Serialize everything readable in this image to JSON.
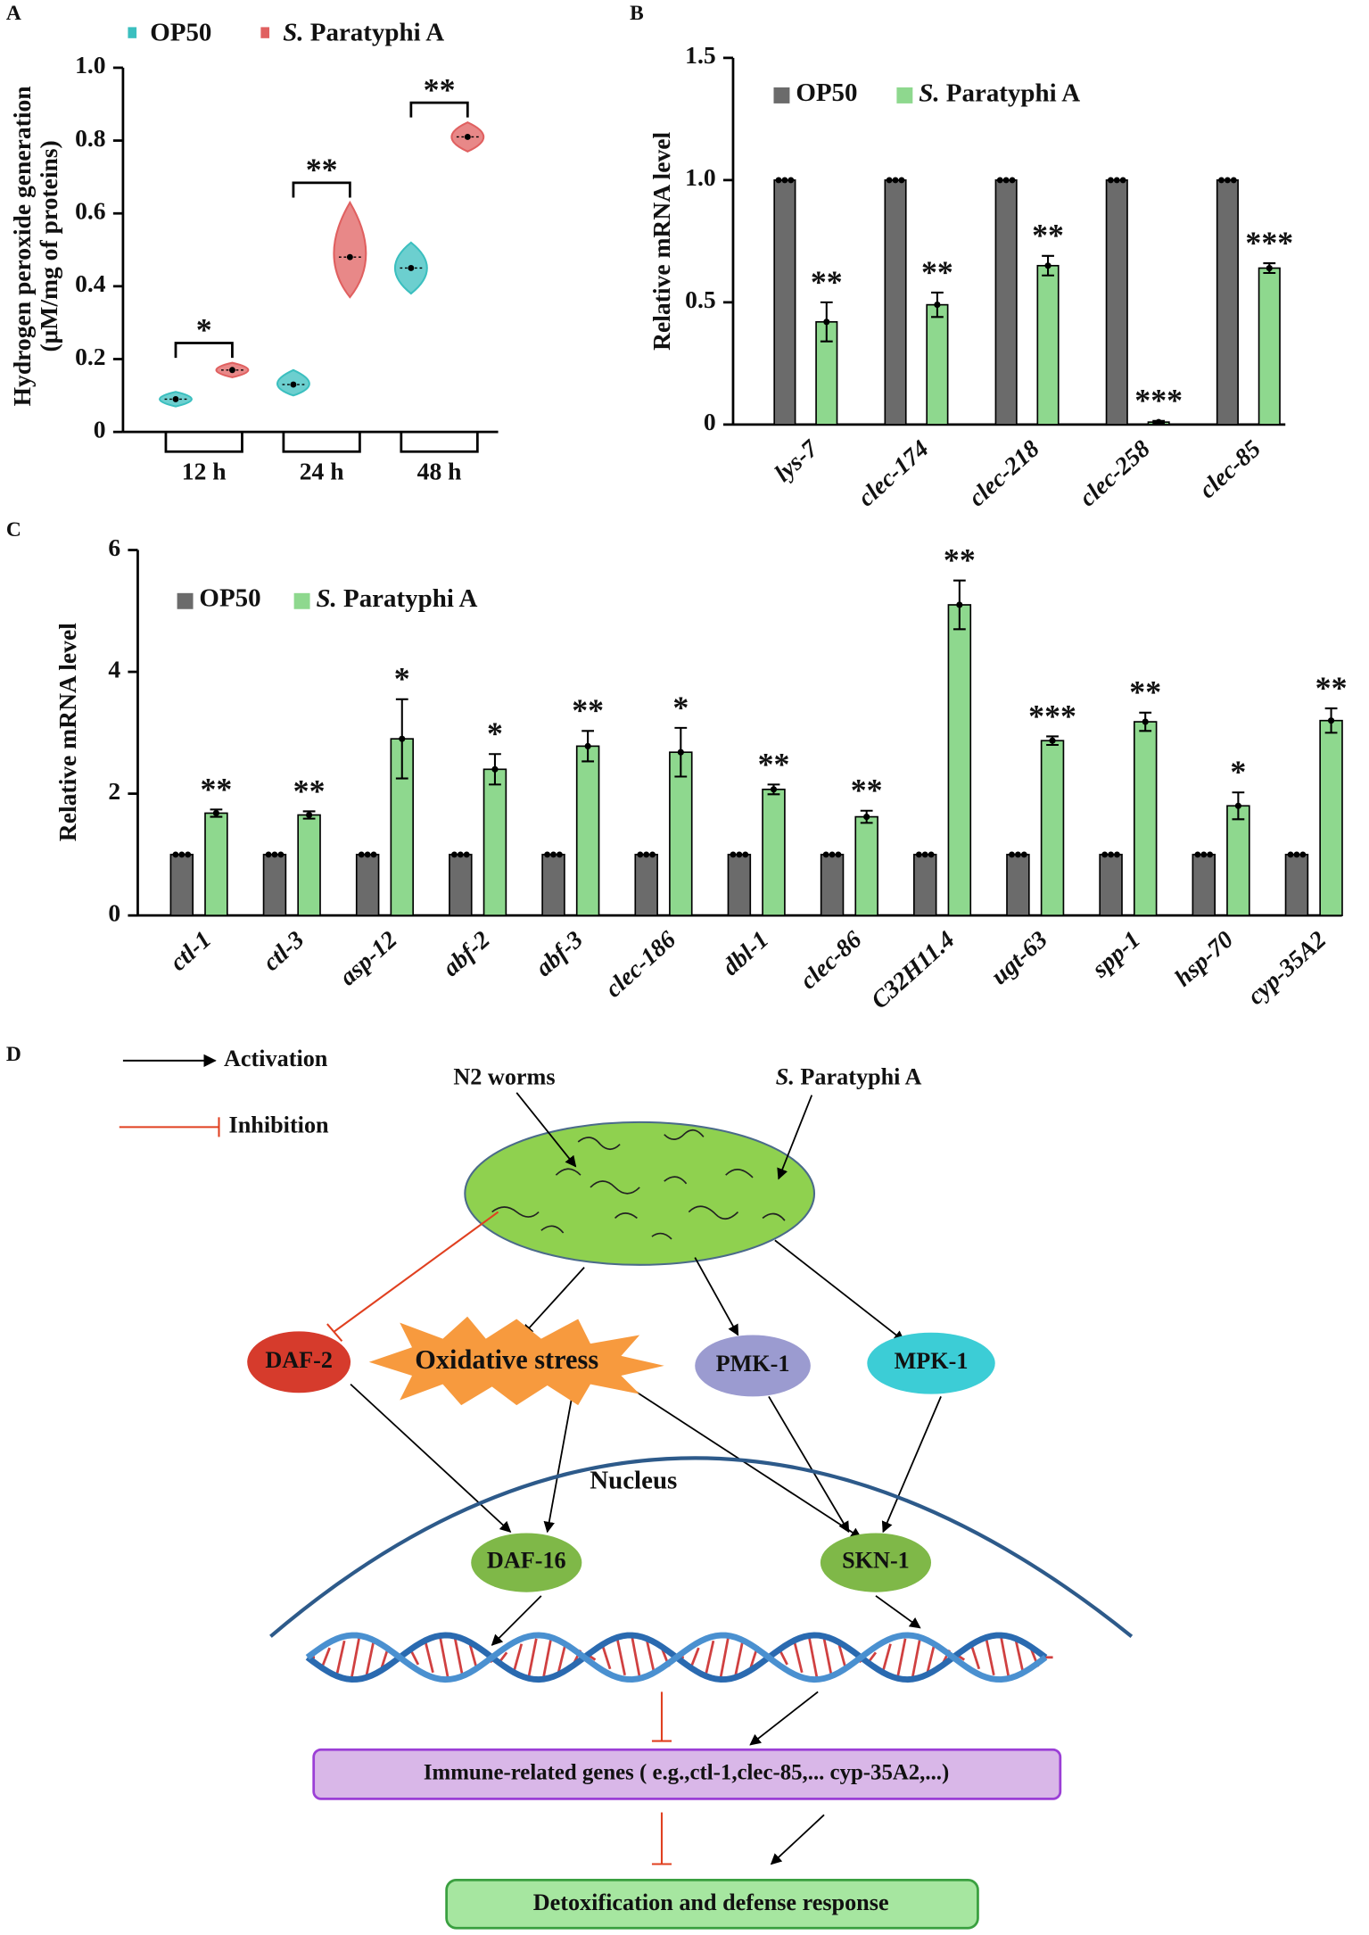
{
  "chart_data": [
    {
      "type": "violin",
      "label": "A",
      "y_label": [
        "Hydrogen peroxide generation",
        "(μM/mg of proteins)"
      ],
      "categories": [
        "12 h",
        "24 h",
        "48 h"
      ],
      "series": [
        {
          "name": "OP50",
          "color": "#3bbfbf",
          "values": [
            0.09,
            0.13,
            0.45
          ],
          "min": [
            0.07,
            0.1,
            0.38
          ],
          "max": [
            0.11,
            0.17,
            0.52
          ]
        },
        {
          "name": "S. Paratyphi A",
          "color": "#e06060",
          "values": [
            0.17,
            0.48,
            0.81
          ],
          "min": [
            0.15,
            0.37,
            0.77
          ],
          "max": [
            0.19,
            0.63,
            0.85
          ]
        }
      ],
      "significance": [
        "*",
        "**",
        "**"
      ],
      "ylim": [
        0,
        1
      ],
      "yticks": [
        0,
        0.2,
        0.4,
        0.6,
        0.8,
        {
          "value": 1,
          "label": "1.0"
        }
      ]
    },
    {
      "type": "bar",
      "label": "B",
      "y_label": "Relative mRNA level",
      "categories": [
        "lys-7",
        "clec-174",
        "clec-218",
        "clec-258",
        "clec-85"
      ],
      "series": [
        {
          "name": "OP50",
          "color": "#6b6b6b",
          "values": [
            1,
            1,
            1,
            1,
            1
          ]
        },
        {
          "name": "S. Paratyphi A",
          "color": "#8ed88e",
          "values": [
            0.42,
            0.49,
            0.65,
            0.01,
            0.64
          ],
          "errors": [
            0.08,
            0.05,
            0.04,
            0.005,
            0.02
          ],
          "significance": [
            "**",
            "**",
            "**",
            "***",
            "***"
          ]
        }
      ],
      "ylim": [
        0,
        1.5
      ],
      "yticks": [
        0,
        0.5,
        {
          "value": 1,
          "label": "1.0"
        },
        1.5
      ]
    },
    {
      "type": "bar",
      "label": "C",
      "y_label": "Relative mRNA level",
      "categories": [
        "ctl-1",
        "ctl-3",
        "asp-12",
        "abf-2",
        "abf-3",
        "clec-186",
        "dbl-1",
        "clec-86",
        "C32H11.4",
        "ugt-63",
        "spp-1",
        "hsp-70",
        "cyp-35A2"
      ],
      "series": [
        {
          "name": "OP50",
          "color": "#6b6b6b",
          "values": [
            1,
            1,
            1,
            1,
            1,
            1,
            1,
            1,
            1,
            1,
            1,
            1,
            1
          ]
        },
        {
          "name": "S. Paratyphi A",
          "color": "#8ed88e",
          "values": [
            1.68,
            1.65,
            2.9,
            2.4,
            2.78,
            2.68,
            2.07,
            1.62,
            5.1,
            2.87,
            3.18,
            1.8,
            3.2
          ],
          "errors": [
            0.06,
            0.06,
            0.65,
            0.25,
            0.25,
            0.4,
            0.08,
            0.1,
            0.4,
            0.07,
            0.15,
            0.22,
            0.2
          ],
          "significance": [
            "**",
            "**",
            "*",
            "*",
            "**",
            "*",
            "**",
            "**",
            "**",
            "***",
            "**",
            "*",
            "**"
          ]
        }
      ],
      "ylim": [
        0,
        6
      ],
      "yticks": [
        0,
        2,
        4,
        6
      ]
    }
  ],
  "diagram": {
    "label": "D",
    "legend": {
      "activation": "Activation",
      "inhibition": "Inhibition"
    },
    "nodes": {
      "worms": "N2 worms",
      "pathogen": "S. Paratyphi A",
      "daf2": "DAF-2",
      "stress": "Oxidative stress",
      "pmk1": "PMK-1",
      "mpk1": "MPK-1",
      "nucleus": "Nucleus",
      "daf16": "DAF-16",
      "skn1": "SKN-1",
      "genes": "Immune-related genes ( e.g.,ctl-1,clec-85,... cyp-35A2,...)",
      "response": "Detoxification and defense response"
    }
  }
}
